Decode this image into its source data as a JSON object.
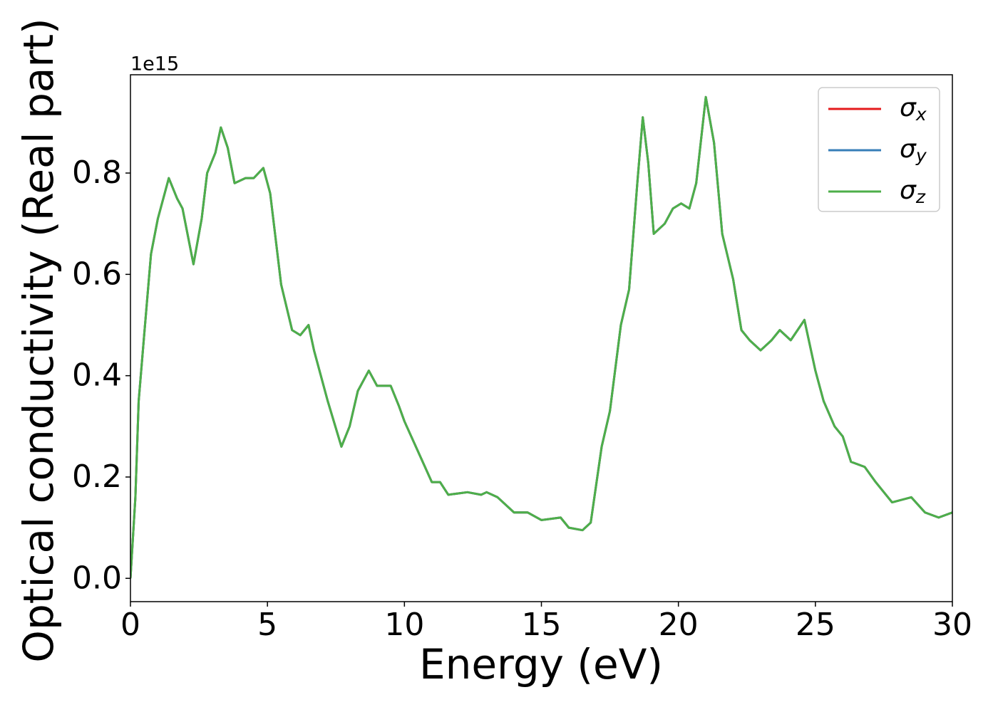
{
  "chart_data": {
    "type": "line",
    "xlabel": "Energy (eV)",
    "ylabel": "Optical conductivity (Real part)",
    "y_offset_text": "1e15",
    "x": [
      0,
      0.18,
      0.3,
      0.5,
      0.75,
      1.0,
      1.4,
      1.7,
      1.9,
      2.3,
      2.6,
      2.8,
      3.1,
      3.3,
      3.55,
      3.8,
      4.2,
      4.5,
      4.85,
      5.1,
      5.5,
      5.9,
      6.2,
      6.5,
      6.7,
      7.2,
      7.7,
      8.0,
      8.3,
      8.7,
      9.0,
      9.5,
      9.8,
      10.0,
      10.5,
      11.0,
      11.3,
      11.6,
      12.3,
      12.8,
      13.0,
      13.4,
      14.0,
      14.5,
      15.0,
      15.7,
      16.0,
      16.5,
      16.8,
      17.2,
      17.5,
      17.9,
      18.2,
      18.5,
      18.7,
      18.9,
      19.1,
      19.5,
      19.8,
      20.1,
      20.4,
      20.65,
      21.0,
      21.3,
      21.6,
      22.0,
      22.3,
      22.6,
      23.0,
      23.4,
      23.7,
      24.1,
      24.6,
      25.0,
      25.3,
      25.7,
      26.0,
      26.3,
      26.8,
      27.2,
      27.8,
      28.5,
      29.0,
      29.5,
      30.0
    ],
    "series": [
      {
        "name": "σx",
        "color": "#e41a1c",
        "values": [
          0.0,
          0.16,
          0.35,
          0.48,
          0.64,
          0.71,
          0.79,
          0.75,
          0.73,
          0.62,
          0.71,
          0.8,
          0.84,
          0.89,
          0.85,
          0.78,
          0.79,
          0.79,
          0.81,
          0.76,
          0.58,
          0.49,
          0.48,
          0.5,
          0.45,
          0.35,
          0.26,
          0.3,
          0.37,
          0.41,
          0.38,
          0.38,
          0.34,
          0.31,
          0.25,
          0.19,
          0.19,
          0.165,
          0.17,
          0.165,
          0.17,
          0.16,
          0.13,
          0.13,
          0.115,
          0.12,
          0.1,
          0.095,
          0.11,
          0.26,
          0.33,
          0.5,
          0.57,
          0.78,
          0.91,
          0.82,
          0.68,
          0.7,
          0.73,
          0.74,
          0.73,
          0.78,
          0.95,
          0.86,
          0.68,
          0.59,
          0.49,
          0.47,
          0.45,
          0.47,
          0.49,
          0.47,
          0.51,
          0.41,
          0.35,
          0.3,
          0.28,
          0.23,
          0.22,
          0.19,
          0.15,
          0.16,
          0.13,
          0.12,
          0.13
        ]
      },
      {
        "name": "σy",
        "color": "#377eb8",
        "values": [
          0.0,
          0.16,
          0.35,
          0.48,
          0.64,
          0.71,
          0.79,
          0.75,
          0.73,
          0.62,
          0.71,
          0.8,
          0.84,
          0.89,
          0.85,
          0.78,
          0.79,
          0.79,
          0.81,
          0.76,
          0.58,
          0.49,
          0.48,
          0.5,
          0.45,
          0.35,
          0.26,
          0.3,
          0.37,
          0.41,
          0.38,
          0.38,
          0.34,
          0.31,
          0.25,
          0.19,
          0.19,
          0.165,
          0.17,
          0.165,
          0.17,
          0.16,
          0.13,
          0.13,
          0.115,
          0.12,
          0.1,
          0.095,
          0.11,
          0.26,
          0.33,
          0.5,
          0.57,
          0.78,
          0.91,
          0.82,
          0.68,
          0.7,
          0.73,
          0.74,
          0.73,
          0.78,
          0.95,
          0.86,
          0.68,
          0.59,
          0.49,
          0.47,
          0.45,
          0.47,
          0.49,
          0.47,
          0.51,
          0.41,
          0.35,
          0.3,
          0.28,
          0.23,
          0.22,
          0.19,
          0.15,
          0.16,
          0.13,
          0.12,
          0.13
        ]
      },
      {
        "name": "σz",
        "color": "#4daf4a",
        "values": [
          0.0,
          0.16,
          0.35,
          0.48,
          0.64,
          0.71,
          0.79,
          0.75,
          0.73,
          0.62,
          0.71,
          0.8,
          0.84,
          0.89,
          0.85,
          0.78,
          0.79,
          0.79,
          0.81,
          0.76,
          0.58,
          0.49,
          0.48,
          0.5,
          0.45,
          0.35,
          0.26,
          0.3,
          0.37,
          0.41,
          0.38,
          0.38,
          0.34,
          0.31,
          0.25,
          0.19,
          0.19,
          0.165,
          0.17,
          0.165,
          0.17,
          0.16,
          0.13,
          0.13,
          0.115,
          0.12,
          0.1,
          0.095,
          0.11,
          0.26,
          0.33,
          0.5,
          0.57,
          0.78,
          0.91,
          0.82,
          0.68,
          0.7,
          0.73,
          0.74,
          0.73,
          0.78,
          0.95,
          0.86,
          0.68,
          0.59,
          0.49,
          0.47,
          0.45,
          0.47,
          0.49,
          0.47,
          0.51,
          0.41,
          0.35,
          0.3,
          0.28,
          0.23,
          0.22,
          0.19,
          0.15,
          0.16,
          0.13,
          0.12,
          0.13
        ]
      }
    ],
    "xlim": [
      0,
      30
    ],
    "xticks": [
      0,
      5,
      10,
      15,
      20,
      25,
      30
    ],
    "ylim": [
      -0.046,
      0.994
    ],
    "yticks": [
      {
        "value": 0,
        "label": "0.0"
      },
      0.2,
      0.4,
      0.6,
      0.8
    ],
    "grid": false,
    "legend": "upper right"
  }
}
